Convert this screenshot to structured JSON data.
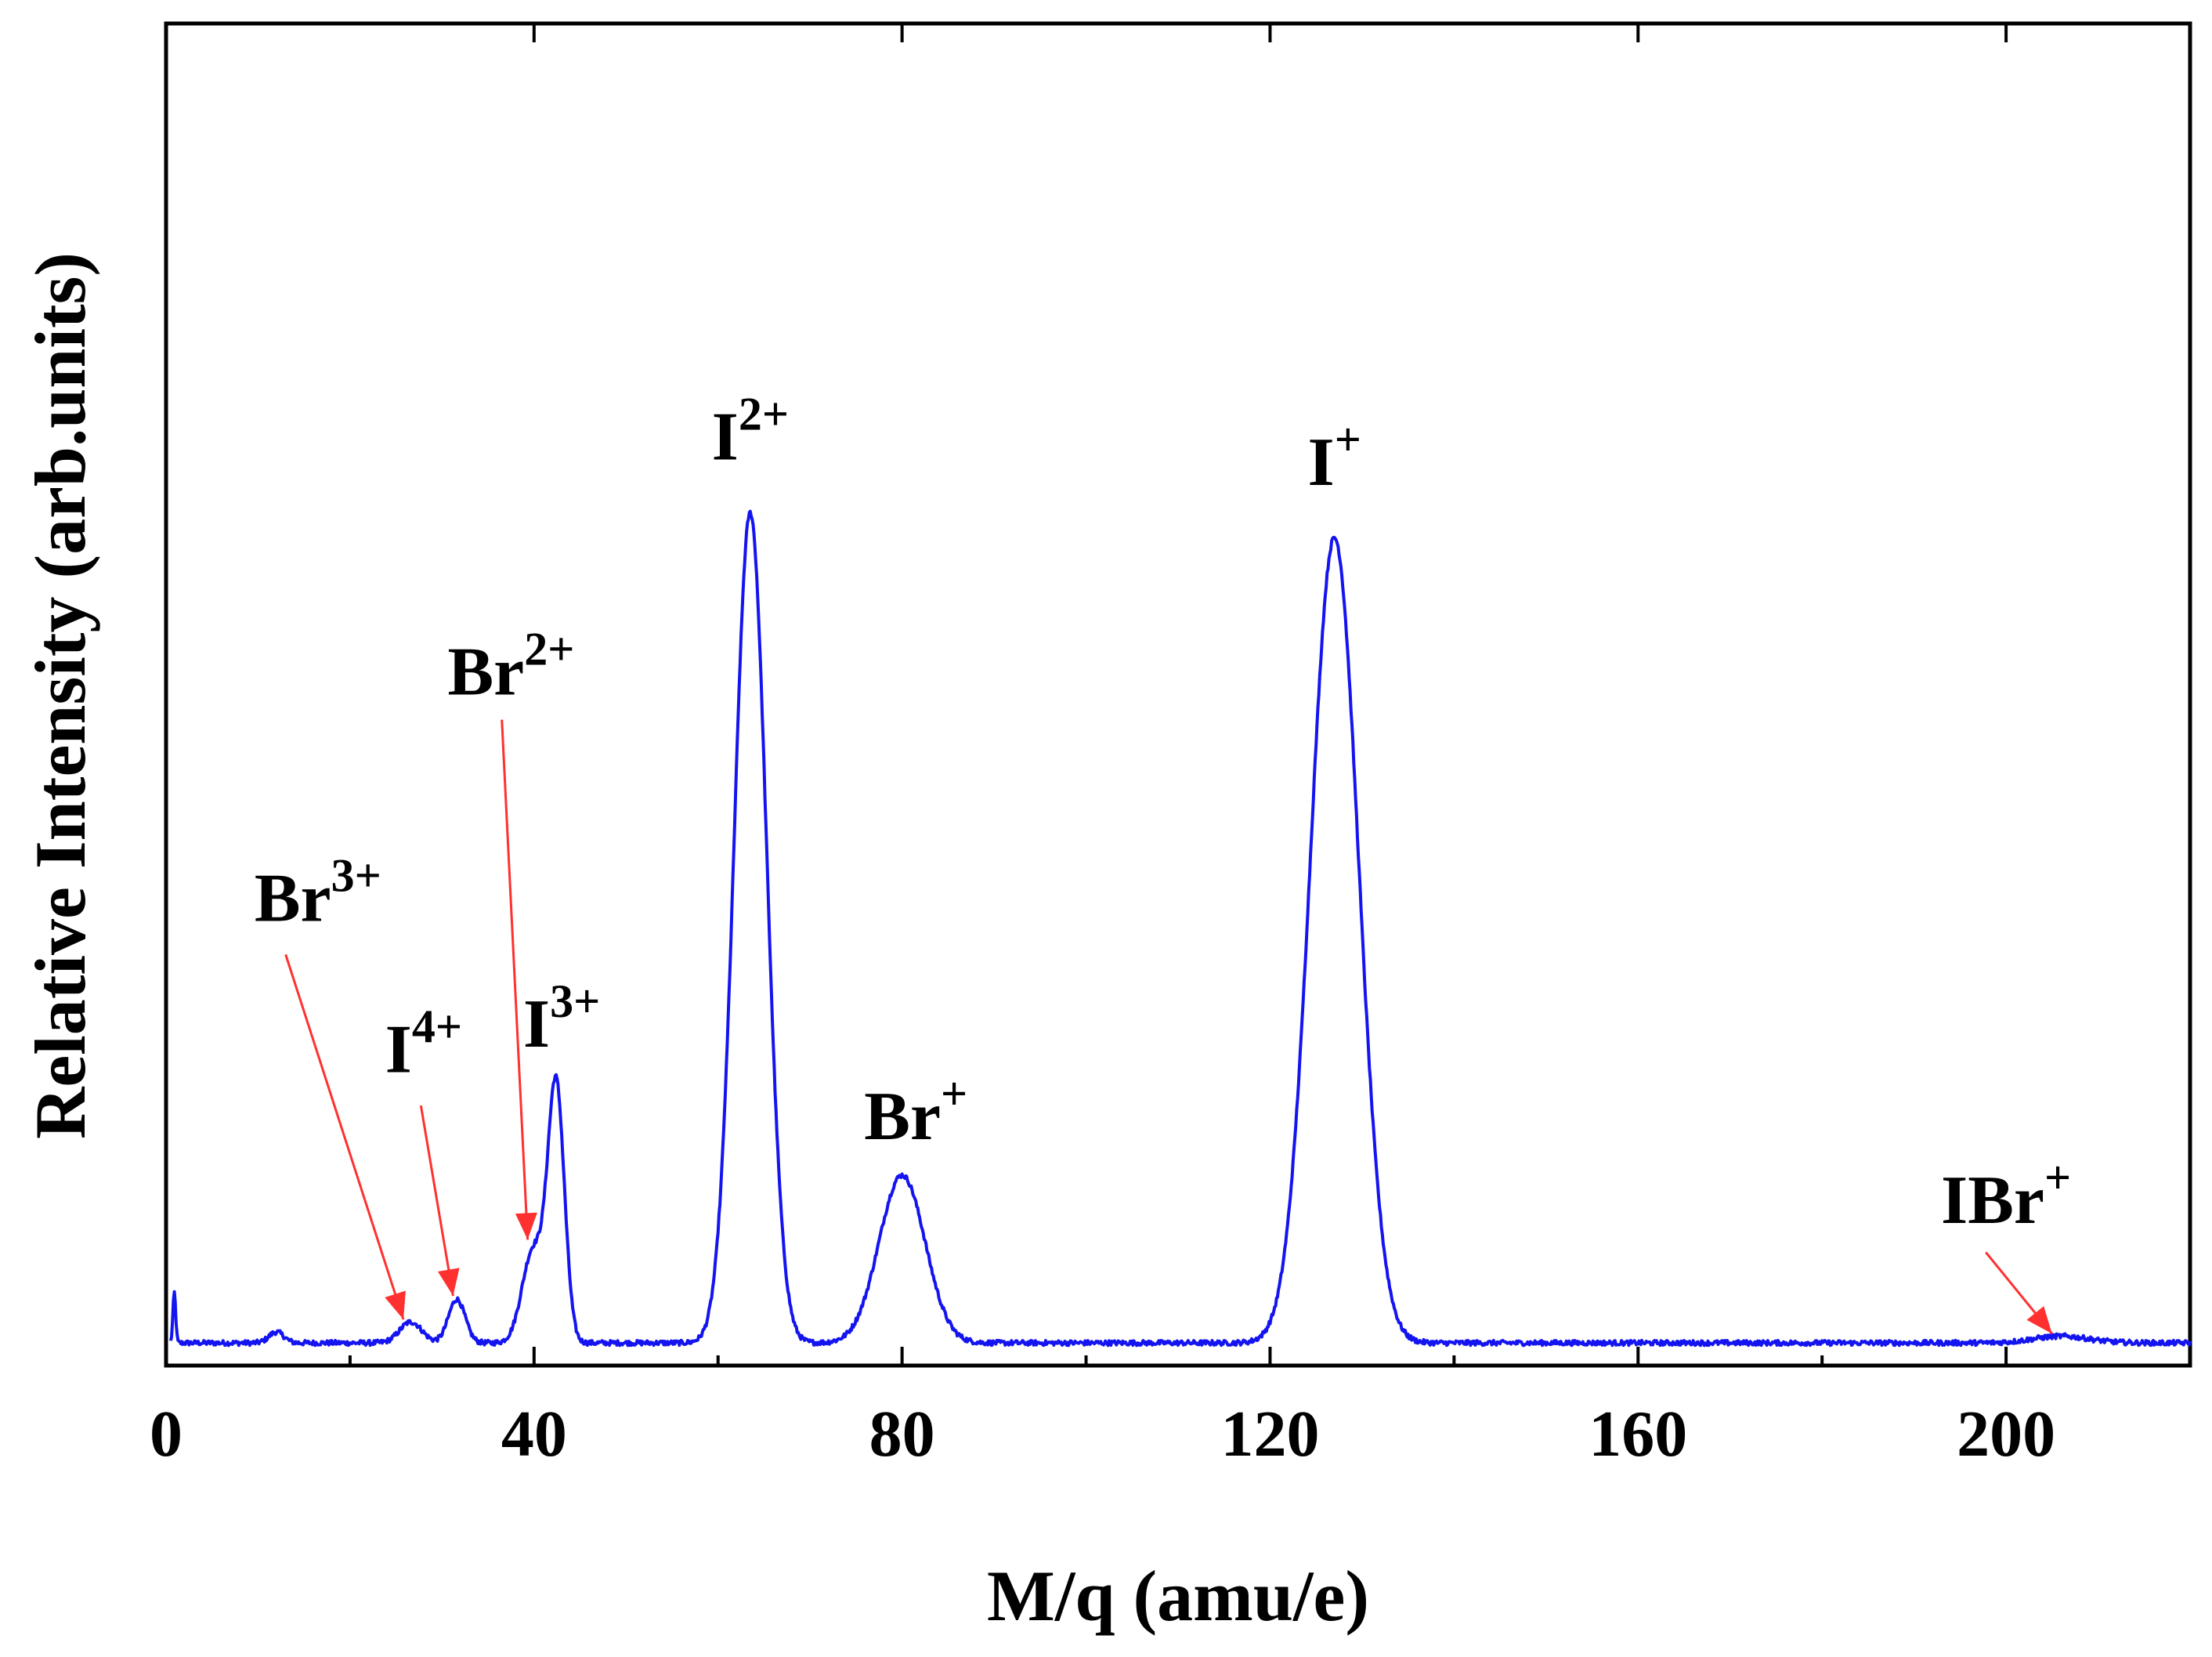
{
  "chart_data": {
    "type": "line",
    "xlabel": "M/q (amu/e)",
    "ylabel": "Relative Intensity (arb.units)",
    "xlim": [
      0,
      220
    ],
    "ylim": [
      0,
      1.6
    ],
    "x_ticks": [
      0,
      40,
      80,
      120,
      160,
      200
    ],
    "x_minor_ticks": [
      20,
      60,
      100,
      140,
      180,
      220
    ],
    "y_ticks_labeled": false,
    "grid": false,
    "series": [
      {
        "color": "#1414f0",
        "baseline": 0.027,
        "peaks": [
          {
            "x": 0.9,
            "height": 0.06,
            "width": 0.15
          },
          {
            "x": 12,
            "height": 0.013,
            "width": 0.8
          },
          {
            "x": 26.6,
            "height": 0.025,
            "width": 1.2
          },
          {
            "x": 31.6,
            "height": 0.052,
            "width": 0.9
          },
          {
            "x": 39.9,
            "height": 0.11,
            "width": 1.2
          },
          {
            "x": 42.4,
            "height": 0.305,
            "width": 0.9
          },
          {
            "x": 63.5,
            "height": 0.99,
            "width": 1.75
          },
          {
            "x": 80.0,
            "height": 0.2,
            "width": 2.5
          },
          {
            "x": 127.0,
            "height": 0.96,
            "width": 2.6
          },
          {
            "x": 206.0,
            "height": 0.008,
            "width": 3.0
          }
        ]
      }
    ],
    "annotations": [
      {
        "base": "I",
        "sup": "2+",
        "x": 63.5,
        "y": 1.08,
        "arrow": false
      },
      {
        "base": "I",
        "sup": "+",
        "x": 127.0,
        "y": 1.05,
        "arrow": false
      },
      {
        "base": "Br",
        "sup": "2+",
        "x": 37.5,
        "y": 0.8,
        "arrow": true,
        "arrow_from": [
          36.5,
          0.77
        ],
        "arrow_to": [
          39.3,
          0.15
        ],
        "arrow_color": "#ff3030"
      },
      {
        "base": "Br",
        "sup": "3+",
        "x": 16.5,
        "y": 0.53,
        "arrow": true,
        "arrow_from": [
          13.0,
          0.49
        ],
        "arrow_to": [
          25.8,
          0.055
        ],
        "arrow_color": "#ff3030"
      },
      {
        "base": "I",
        "sup": "4+",
        "x": 28.0,
        "y": 0.35,
        "arrow": true,
        "arrow_from": [
          27.7,
          0.31
        ],
        "arrow_to": [
          31.2,
          0.083
        ],
        "arrow_color": "#ff3030"
      },
      {
        "base": "I",
        "sup": "3+",
        "x": 43.0,
        "y": 0.38,
        "arrow": false
      },
      {
        "base": "Br",
        "sup": "+",
        "x": 81.5,
        "y": 0.27,
        "arrow": false
      },
      {
        "base": "IBr",
        "sup": "+",
        "x": 200.0,
        "y": 0.17,
        "arrow": true,
        "arrow_from": [
          197.8,
          0.135
        ],
        "arrow_to": [
          205.0,
          0.038
        ],
        "arrow_color": "#ff3030"
      }
    ]
  }
}
